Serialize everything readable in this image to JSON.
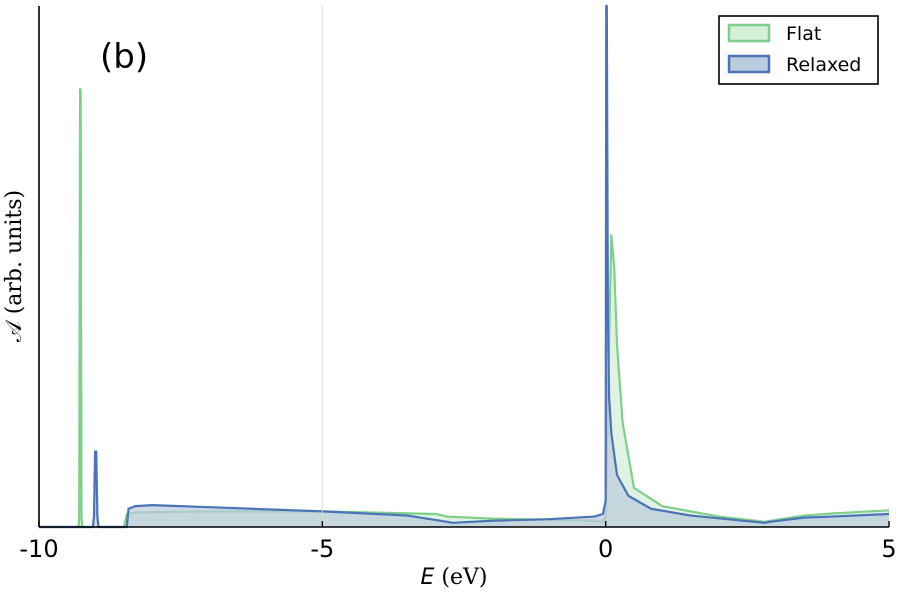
{
  "chart_data": {
    "type": "area",
    "panel_label": "(b)",
    "xlabel_var": "E",
    "xlabel_unit": " (eV)",
    "ylabel": "𝒜 (arb. units)",
    "xlim": [
      -10,
      5
    ],
    "ylim": [
      0,
      1.0
    ],
    "x_ticks": [
      "-10",
      "-5",
      "0",
      "5"
    ],
    "x_tick_values": [
      -10,
      -5,
      0,
      5
    ],
    "grid": "vertical line at -5",
    "legend_position": "top-right",
    "series": [
      {
        "name": "Flat",
        "line_color": "#7fcf8a",
        "fill_color": "#d6efd8",
        "x": [
          -10,
          -9.3,
          -9.29,
          -9.275,
          -9.265,
          -9.25,
          -9.24,
          -8.5,
          -8.45,
          -8.3,
          -7,
          -5,
          -3,
          -2.8,
          -2,
          -1,
          -0.2,
          -0.05,
          0,
          0.05,
          0.1,
          0.15,
          0.2,
          0.3,
          0.5,
          1,
          2,
          2.8,
          3.5,
          4,
          5
        ],
        "values": [
          0,
          0,
          0.02,
          0.84,
          0.84,
          0.02,
          0,
          0,
          0.025,
          0.028,
          0.03,
          0.03,
          0.025,
          0.02,
          0.016,
          0.014,
          0.012,
          0.01,
          0.02,
          0.3,
          0.56,
          0.5,
          0.35,
          0.2,
          0.075,
          0.04,
          0.02,
          0.01,
          0.022,
          0.026,
          0.032
        ]
      },
      {
        "name": "Relaxed",
        "line_color": "#4a74b8",
        "fill_color": "#bccbdd",
        "x": [
          -10,
          -9.05,
          -9.03,
          -9.01,
          -8.99,
          -8.97,
          -8.95,
          -8.45,
          -8.42,
          -8.3,
          -8,
          -7,
          -5,
          -3.5,
          -2.8,
          -2.7,
          -2,
          -1,
          -0.2,
          -0.05,
          0,
          0.01,
          0.02,
          0.04,
          0.06,
          0.1,
          0.2,
          0.4,
          0.8,
          1.5,
          2.8,
          2.9,
          3.5,
          4,
          5
        ],
        "values": [
          0,
          0,
          0.02,
          0.145,
          0.145,
          0.02,
          0,
          0,
          0.035,
          0.04,
          0.042,
          0.038,
          0.03,
          0.022,
          0.01,
          0.008,
          0.012,
          0.015,
          0.02,
          0.025,
          0.05,
          1.0,
          1.0,
          0.4,
          0.25,
          0.18,
          0.1,
          0.06,
          0.035,
          0.022,
          0.008,
          0.01,
          0.018,
          0.02,
          0.025
        ]
      }
    ]
  }
}
